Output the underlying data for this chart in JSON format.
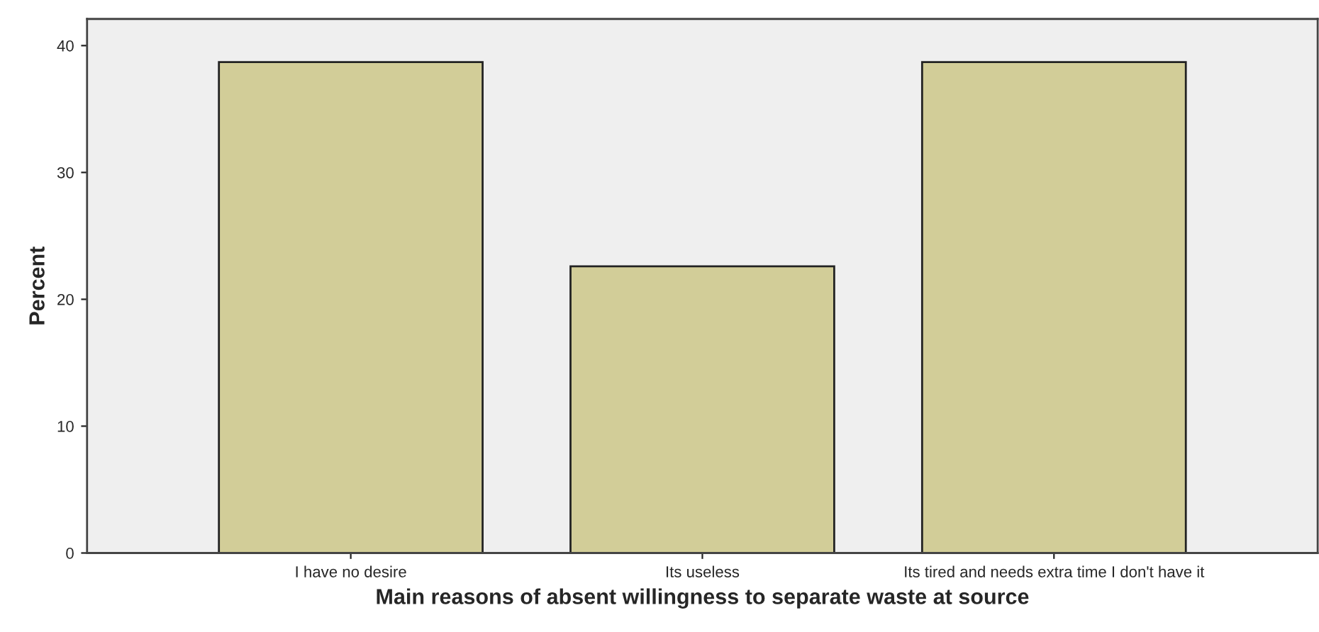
{
  "chart_data": {
    "type": "bar",
    "xlabel": "Main reasons of absent willingness to separate waste at source",
    "ylabel": "Percent",
    "categories": [
      "I have no desire",
      "Its useless",
      "Its tired and needs extra time I don't have it"
    ],
    "values": [
      38.7,
      22.6,
      38.7
    ],
    "color": "#d2cd98",
    "ylim": [
      0,
      42.1
    ],
    "yticks": [
      0,
      10,
      20,
      30,
      40
    ],
    "grid": false
  }
}
